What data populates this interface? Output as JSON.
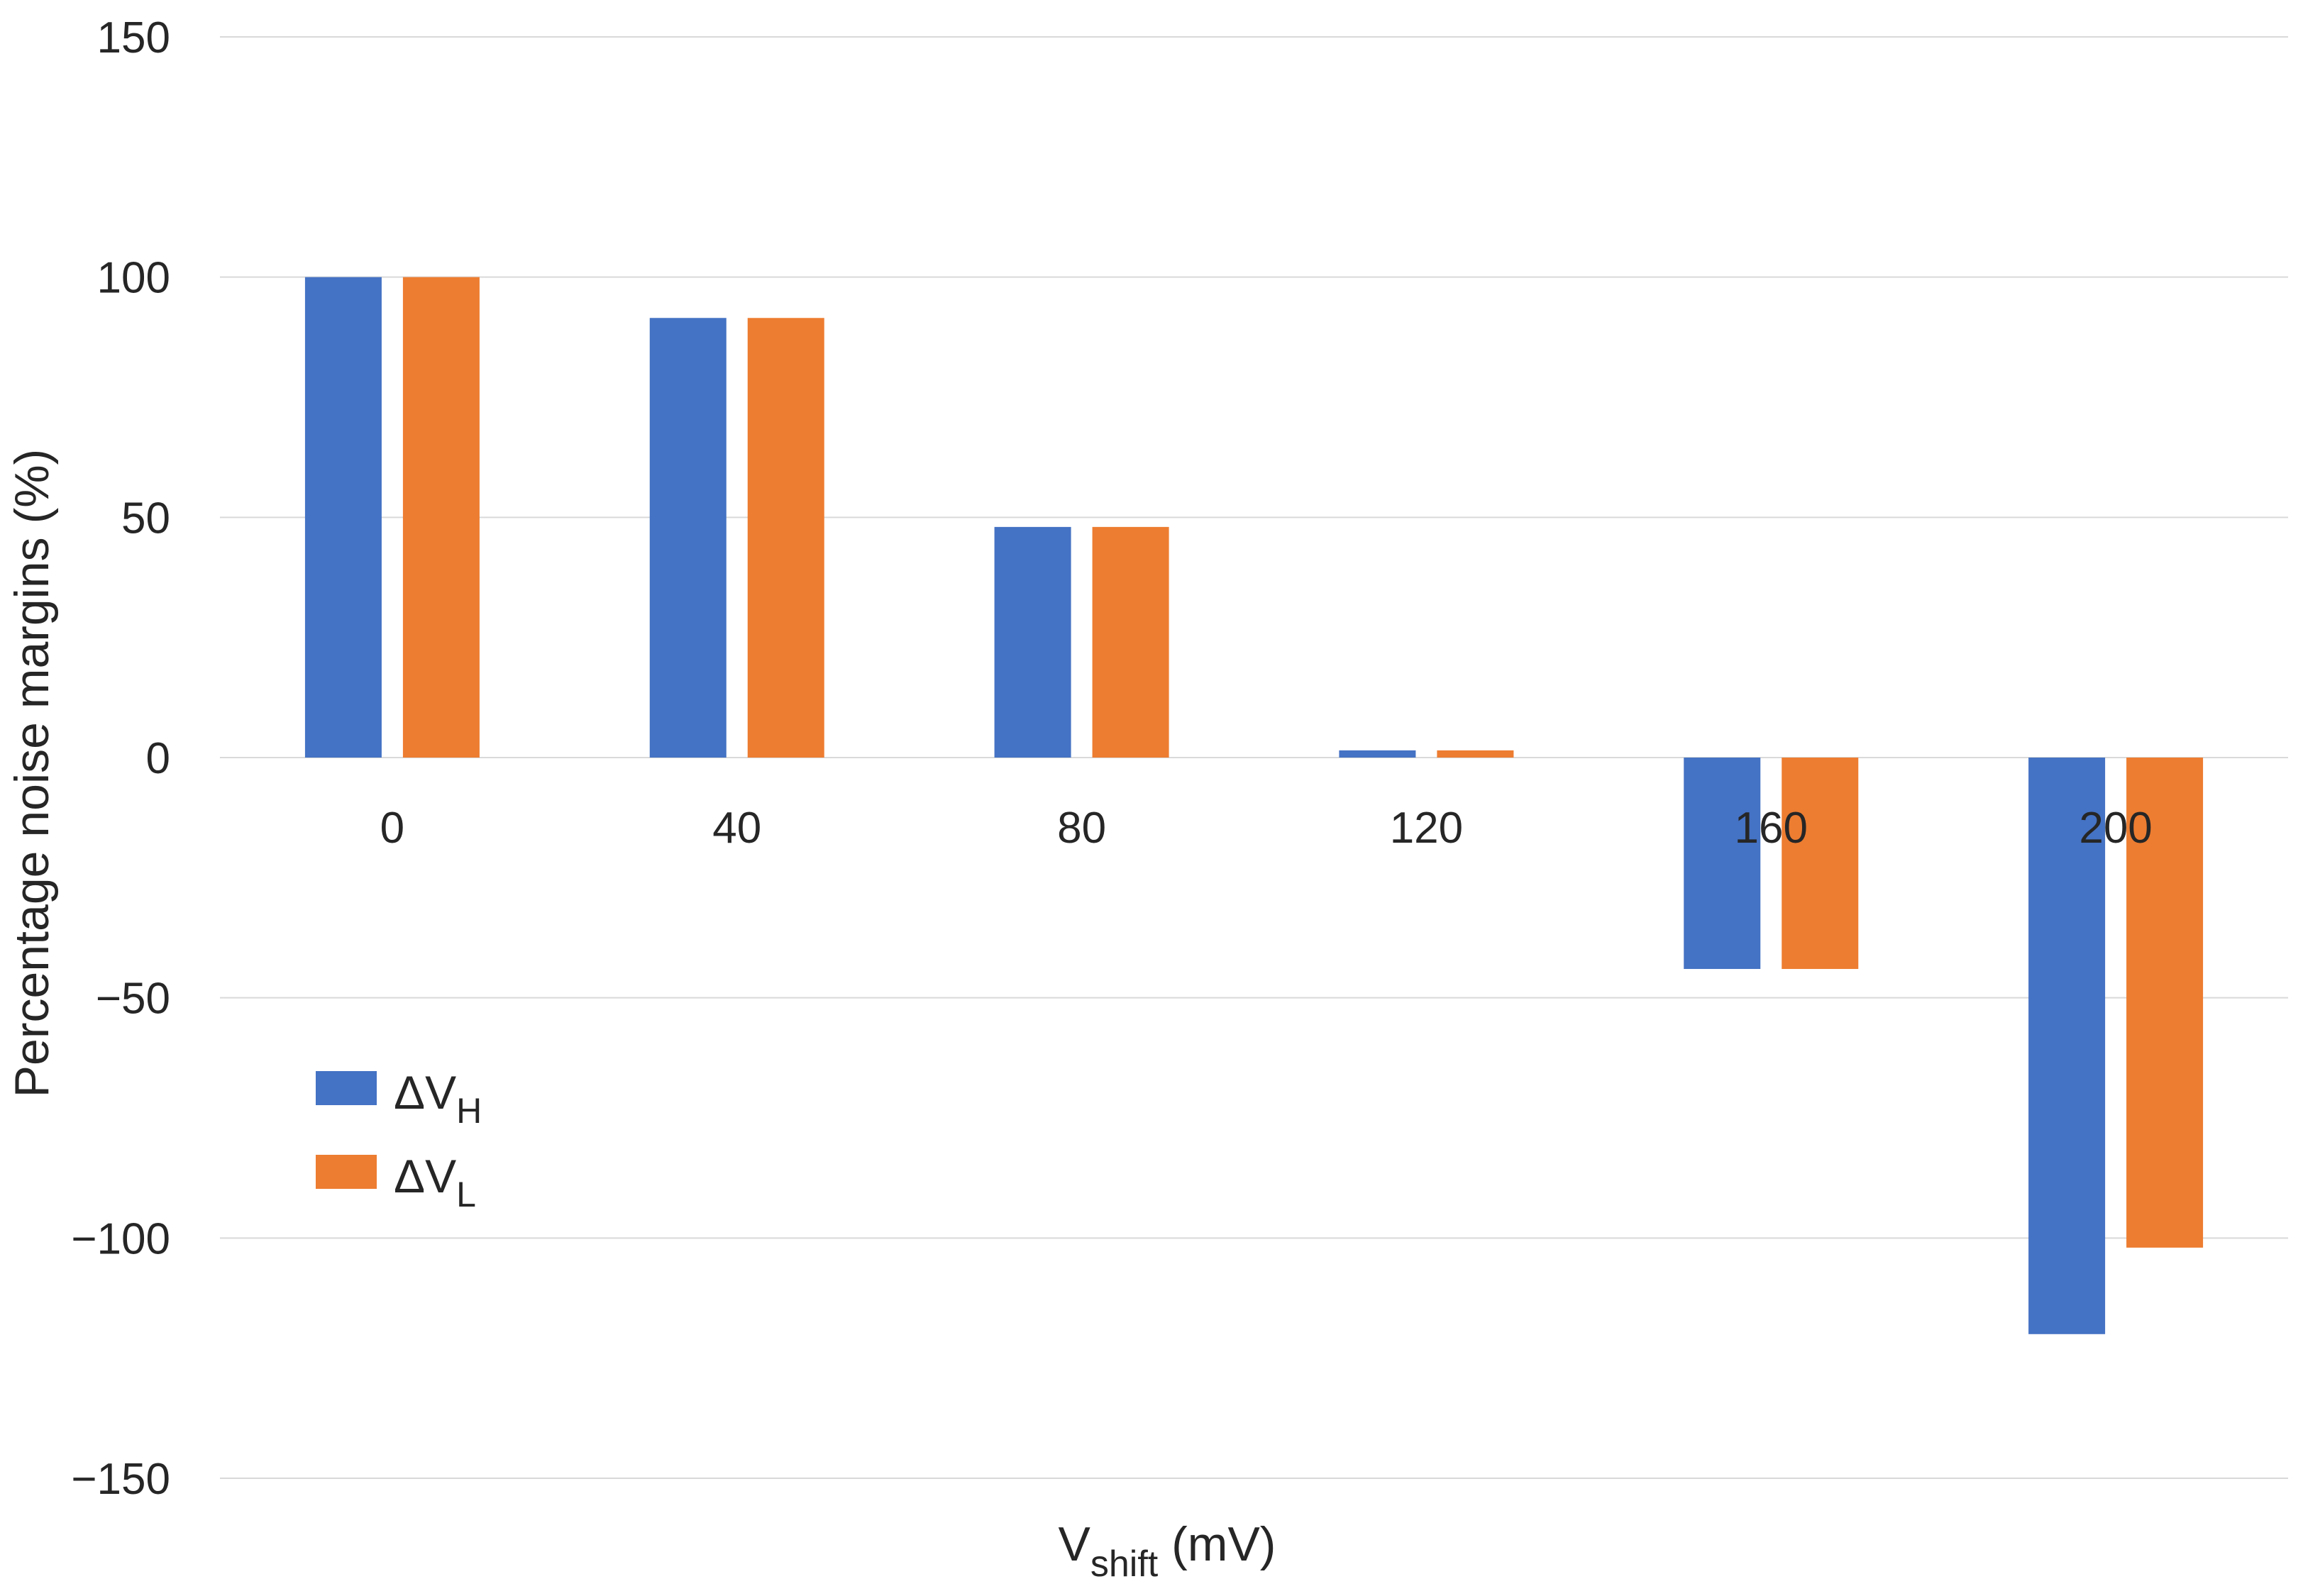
{
  "chart_data": {
    "type": "bar",
    "title": "",
    "xlabel": {
      "main": "V",
      "sub": "shift",
      "unit": " (mV)"
    },
    "ylabel": "Percentage noise margins (%)",
    "categories": [
      "0",
      "40",
      "80",
      "120",
      "160",
      "200"
    ],
    "ylim": [
      -150,
      150
    ],
    "yticks": [
      150,
      100,
      50,
      0,
      -50,
      -100,
      -150
    ],
    "ytick_labels": [
      "150",
      "100",
      "50",
      "0",
      "−50",
      "−100",
      "−150"
    ],
    "grid": true,
    "legend_position": "center-left",
    "series": [
      {
        "name": "ΔV",
        "sub": "H",
        "color": "#4472C4",
        "values": [
          100,
          91.5,
          48,
          1.5,
          -44,
          -120
        ]
      },
      {
        "name": "ΔV",
        "sub": "L",
        "color": "#ED7D31",
        "values": [
          100,
          91.5,
          48,
          1.5,
          -44,
          -102
        ]
      }
    ]
  }
}
